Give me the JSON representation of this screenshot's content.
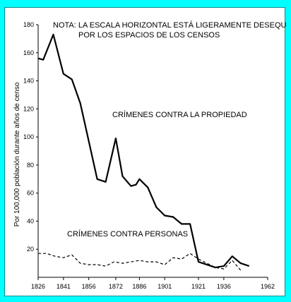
{
  "page": {
    "background": "#00FFFF"
  },
  "chart_data": {
    "type": "line",
    "title": "",
    "ylabel": "Por 100,000 población durante años de censo",
    "xlabel": "",
    "note_lines": [
      "NOTA: LA ESCALA HORIZONTAL ESTÁ LIGERAMENTE DESEQUILIBRADA",
      "POR LOS ESPACIOS DE LOS CENSOS"
    ],
    "xlim": [
      1826,
      1962
    ],
    "ylim": [
      0,
      180
    ],
    "yticks": [
      20,
      40,
      60,
      80,
      100,
      120,
      140,
      160,
      180
    ],
    "xticks": [
      "1826",
      "1841",
      "1856",
      "1872",
      "1886",
      "1901",
      "1921",
      "1936",
      "1962"
    ],
    "grid": false,
    "series": [
      {
        "name": "CRÍMENES CONTRA LA PROPIEDAD",
        "style": "solid",
        "color": "#000000",
        "points": [
          [
            1826,
            156
          ],
          [
            1829,
            155
          ],
          [
            1835,
            173
          ],
          [
            1841,
            145
          ],
          [
            1846,
            141
          ],
          [
            1851,
            124
          ],
          [
            1856,
            97
          ],
          [
            1861,
            70
          ],
          [
            1866,
            68
          ],
          [
            1872,
            99
          ],
          [
            1876,
            72
          ],
          [
            1881,
            65
          ],
          [
            1884,
            66
          ],
          [
            1886,
            70
          ],
          [
            1891,
            64
          ],
          [
            1896,
            50
          ],
          [
            1901,
            44
          ],
          [
            1906,
            43
          ],
          [
            1911,
            38
          ],
          [
            1916,
            38
          ],
          [
            1921,
            11
          ],
          [
            1931,
            7
          ],
          [
            1936,
            8
          ],
          [
            1941,
            15
          ],
          [
            1946,
            10
          ],
          [
            1951,
            8
          ]
        ]
      },
      {
        "name": "CRÍMENES CONTRA PERSONAS",
        "style": "dashed",
        "color": "#000000",
        "points": [
          [
            1826,
            17
          ],
          [
            1831,
            17
          ],
          [
            1836,
            15
          ],
          [
            1841,
            14
          ],
          [
            1846,
            16
          ],
          [
            1851,
            10
          ],
          [
            1856,
            9
          ],
          [
            1861,
            9
          ],
          [
            1866,
            8
          ],
          [
            1871,
            11
          ],
          [
            1876,
            10
          ],
          [
            1881,
            11
          ],
          [
            1886,
            12
          ],
          [
            1891,
            11
          ],
          [
            1896,
            11
          ],
          [
            1901,
            9
          ],
          [
            1906,
            14
          ],
          [
            1911,
            13
          ],
          [
            1916,
            17
          ],
          [
            1921,
            13
          ],
          [
            1926,
            10
          ],
          [
            1931,
            7
          ],
          [
            1936,
            6
          ],
          [
            1941,
            12
          ],
          [
            1946,
            5
          ]
        ]
      }
    ]
  }
}
